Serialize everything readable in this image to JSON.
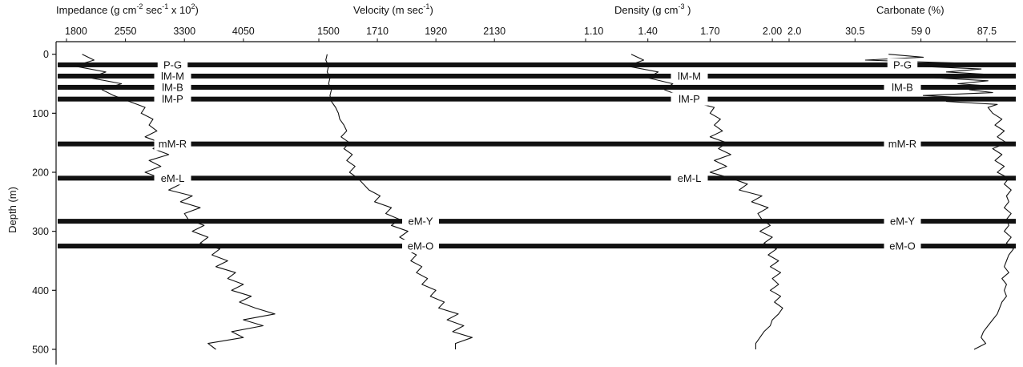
{
  "chart_data": {
    "type": "line",
    "ylabel": "Depth (m)",
    "yticks": [
      0,
      100,
      200,
      300,
      400,
      500
    ],
    "ylim": [
      -5,
      515
    ],
    "y_reversed": true,
    "panels": [
      {
        "title_main": "Impedance (g cm",
        "title_sup1": "-2",
        "title_mid": " sec",
        "title_sup2": "-1",
        "title_end": " x 10",
        "title_sup3": "2",
        "title_close": ")",
        "xticks": [
          "1800",
          "2550",
          "3300",
          "4050"
        ],
        "xtick_values": [
          1800,
          2550,
          3300,
          4050
        ],
        "xlim": [
          1800,
          4500
        ],
        "series": [
          {
            "depth": [
              0,
              10,
              20,
              30,
              40,
              50,
              60,
              70,
              80,
              90,
              100,
              110,
              120,
              130,
              140,
              150,
              160,
              170,
              180,
              190,
              200,
              210,
              220,
              230,
              240,
              250,
              260,
              270,
              280,
              290,
              300,
              310,
              320,
              330,
              340,
              350,
              360,
              370,
              380,
              390,
              400,
              410,
              420,
              430,
              440,
              450,
              460,
              470,
              480,
              490,
              500
            ],
            "values": [
              2000,
              2150,
              1900,
              2300,
              2100,
              2500,
              2250,
              2400,
              2600,
              2800,
              2750,
              2900,
              2850,
              2950,
              2800,
              3000,
              2900,
              3100,
              2850,
              3000,
              2800,
              3000,
              3250,
              3100,
              3400,
              3250,
              3500,
              3300,
              3350,
              3550,
              3400,
              3600,
              3500,
              3750,
              3650,
              3850,
              3700,
              3950,
              3850,
              4050,
              3900,
              4150,
              4000,
              4200,
              4450,
              4050,
              4300,
              3900,
              4050,
              3600,
              3700
            ]
          }
        ]
      },
      {
        "title_main": "Velocity (m sec",
        "title_sup1": "-1",
        "title_close": ")",
        "xticks": [
          "1500",
          "1710",
          "1920",
          "2130"
        ],
        "xtick_values": [
          1500,
          1710,
          1920,
          2130
        ],
        "xlim": [
          1500,
          2230
        ],
        "series": [
          {
            "depth": [
              0,
              10,
              20,
              30,
              40,
              50,
              60,
              70,
              80,
              90,
              100,
              110,
              120,
              130,
              140,
              150,
              160,
              170,
              180,
              190,
              200,
              210,
              220,
              230,
              240,
              250,
              260,
              270,
              280,
              290,
              300,
              310,
              320,
              330,
              340,
              350,
              360,
              370,
              380,
              390,
              400,
              410,
              420,
              430,
              440,
              450,
              460,
              470,
              480,
              490,
              500
            ],
            "values": [
              1530,
              1525,
              1535,
              1530,
              1540,
              1535,
              1545,
              1540,
              1545,
              1560,
              1570,
              1575,
              1590,
              1600,
              1580,
              1610,
              1590,
              1620,
              1600,
              1630,
              1610,
              1640,
              1660,
              1680,
              1720,
              1700,
              1760,
              1740,
              1790,
              1760,
              1820,
              1790,
              1830,
              1810,
              1850,
              1830,
              1870,
              1850,
              1890,
              1870,
              1920,
              1900,
              1950,
              1930,
              2000,
              1960,
              2020,
              1980,
              2050,
              1990,
              1990
            ]
          }
        ]
      },
      {
        "title_main": "Density (g cm",
        "title_sup1": "-3",
        "title_close": " )",
        "xticks": [
          "1.10",
          "1.40",
          "1.70",
          "2.00"
        ],
        "xtick_values": [
          1.1,
          1.4,
          1.7,
          2.0
        ],
        "xlim": [
          1.1,
          2.1
        ],
        "series": [
          {
            "depth": [
              0,
              10,
              20,
              30,
              40,
              50,
              60,
              70,
              80,
              90,
              100,
              110,
              120,
              130,
              140,
              150,
              160,
              170,
              180,
              190,
              200,
              210,
              220,
              230,
              240,
              250,
              260,
              270,
              280,
              290,
              300,
              310,
              320,
              330,
              340,
              350,
              360,
              370,
              380,
              390,
              400,
              410,
              420,
              430,
              440,
              450,
              460,
              470,
              480,
              490,
              500
            ],
            "values": [
              1.32,
              1.38,
              1.3,
              1.45,
              1.4,
              1.52,
              1.48,
              1.55,
              1.6,
              1.72,
              1.7,
              1.75,
              1.72,
              1.76,
              1.7,
              1.78,
              1.74,
              1.8,
              1.72,
              1.78,
              1.7,
              1.8,
              1.88,
              1.84,
              1.95,
              1.9,
              1.98,
              1.93,
              1.95,
              1.99,
              1.94,
              2.0,
              1.96,
              2.02,
              1.98,
              2.03,
              1.99,
              2.04,
              2.0,
              2.03,
              1.99,
              2.04,
              2.01,
              2.05,
              2.03,
              2.0,
              1.99,
              1.96,
              1.94,
              1.92,
              1.92
            ]
          }
        ]
      },
      {
        "title_main": "Carbonate (%)",
        "xticks": [
          "2.0",
          "30.5",
          "59 0",
          "87.5"
        ],
        "xtick_values": [
          2.0,
          30.5,
          59.0,
          87.5
        ],
        "xlim": [
          2.0,
          100
        ],
        "series": [
          {
            "depth": [
              0,
              5,
              10,
              15,
              20,
              25,
              30,
              35,
              40,
              45,
              50,
              55,
              60,
              65,
              70,
              75,
              80,
              85,
              90,
              100,
              110,
              120,
              130,
              140,
              150,
              160,
              170,
              180,
              190,
              200,
              210,
              220,
              230,
              240,
              250,
              260,
              270,
              280,
              290,
              300,
              310,
              320,
              330,
              340,
              350,
              360,
              370,
              380,
              390,
              400,
              410,
              420,
              430,
              440,
              450,
              460,
              470,
              480,
              490,
              500
            ],
            "values": [
              45,
              60,
              35,
              75,
              55,
              85,
              70,
              92,
              65,
              88,
              75,
              93,
              80,
              90,
              60,
              85,
              70,
              92,
              88,
              90,
              94,
              91,
              95,
              92,
              96,
              90,
              94,
              91,
              95,
              92,
              97,
              95,
              98,
              96,
              97,
              95,
              98,
              96,
              97,
              95,
              98,
              96,
              99,
              97,
              96,
              95,
              97,
              94,
              96,
              95,
              96,
              94,
              93,
              92,
              90,
              88,
              86,
              85,
              87,
              82
            ]
          }
        ]
      }
    ],
    "horizons": [
      {
        "depth": 18,
        "label": "P-G",
        "label_panels": [
          0,
          3
        ]
      },
      {
        "depth": 37,
        "label": "lM-M",
        "label_panels": [
          0,
          2
        ]
      },
      {
        "depth": 56,
        "label": "lM-B",
        "label_panels": [
          0,
          3
        ]
      },
      {
        "depth": 76,
        "label": "lM-P",
        "label_panels": [
          0,
          2
        ]
      },
      {
        "depth": 152,
        "label": "mM-R",
        "label_panels": [
          0,
          3
        ]
      },
      {
        "depth": 210,
        "label": "eM-L",
        "label_panels": [
          0,
          2
        ]
      },
      {
        "depth": 283,
        "label": "eM-Y",
        "label_panels": [
          1,
          3
        ]
      },
      {
        "depth": 325,
        "label": "eM-O",
        "label_panels": [
          1,
          3
        ]
      }
    ]
  }
}
